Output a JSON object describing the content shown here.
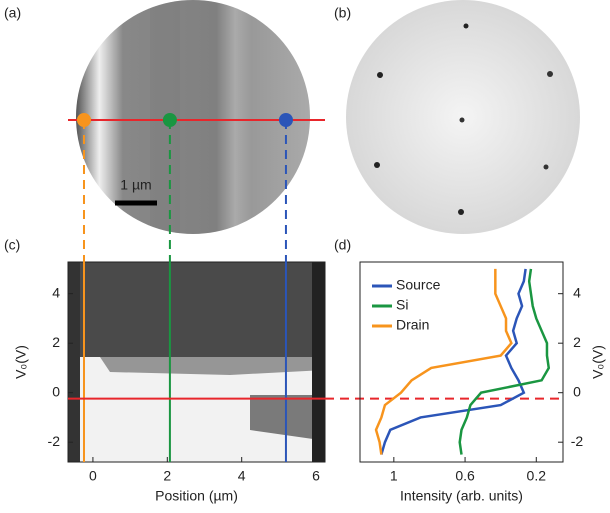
{
  "panels": {
    "a": {
      "label": "(a)",
      "scale_bar": "1 µm"
    },
    "b": {
      "label": "(b)"
    }
  },
  "chart_data": [
    {
      "type": "image",
      "panel_label": "(c)",
      "x_label": "Position (µm)",
      "y_label": "V₀(V)",
      "xlim": [
        -0.67,
        6.24
      ],
      "xticks": [
        0,
        2,
        4,
        6
      ],
      "ylim": [
        -2.8,
        5.28
      ],
      "yticks": [
        -2,
        0,
        2,
        4
      ],
      "cuts": [
        {
          "color": "#f7941d",
          "x": -0.24
        },
        {
          "color": "#1a9641",
          "x": 2.07
        },
        {
          "color": "#2b55b8",
          "x": 5.19
        }
      ],
      "hline": {
        "color": "#e8262b",
        "y": -0.24
      }
    },
    {
      "type": "line",
      "panel_label": "(d)",
      "x_label": "Intensity (arb. units)",
      "y_label": "V₀(V)",
      "xlim": [
        1.19,
        0.05
      ],
      "xticks": [
        1,
        0.6,
        0.2
      ],
      "ylim": [
        -2.8,
        5.28
      ],
      "yticks": [
        -2,
        0,
        2,
        4
      ],
      "legend": "upper left",
      "y": [
        -2.5,
        -2,
        -1.5,
        -1,
        -0.5,
        0,
        0.5,
        1,
        1.5,
        2,
        2.5,
        3,
        3.5,
        4,
        4.5,
        5
      ],
      "series": [
        {
          "name": "Source",
          "color": "#2b55b8",
          "values": [
            1.07,
            1.05,
            1.02,
            0.85,
            0.4,
            0.27,
            0.3,
            0.34,
            0.37,
            0.31,
            0.33,
            0.31,
            0.28,
            0.3,
            0.27,
            0.26
          ]
        },
        {
          "name": "Si",
          "color": "#1a9641",
          "values": [
            0.62,
            0.63,
            0.62,
            0.59,
            0.57,
            0.51,
            0.17,
            0.13,
            0.14,
            0.14,
            0.17,
            0.2,
            0.22,
            0.23,
            0.24,
            0.23
          ]
        },
        {
          "name": "Drain",
          "color": "#f7941d",
          "values": [
            1.07,
            1.08,
            1.1,
            1.07,
            1.05,
            0.96,
            0.9,
            0.79,
            0.4,
            0.34,
            0.37,
            0.37,
            0.4,
            0.43,
            0.43,
            0.43
          ]
        }
      ]
    }
  ]
}
